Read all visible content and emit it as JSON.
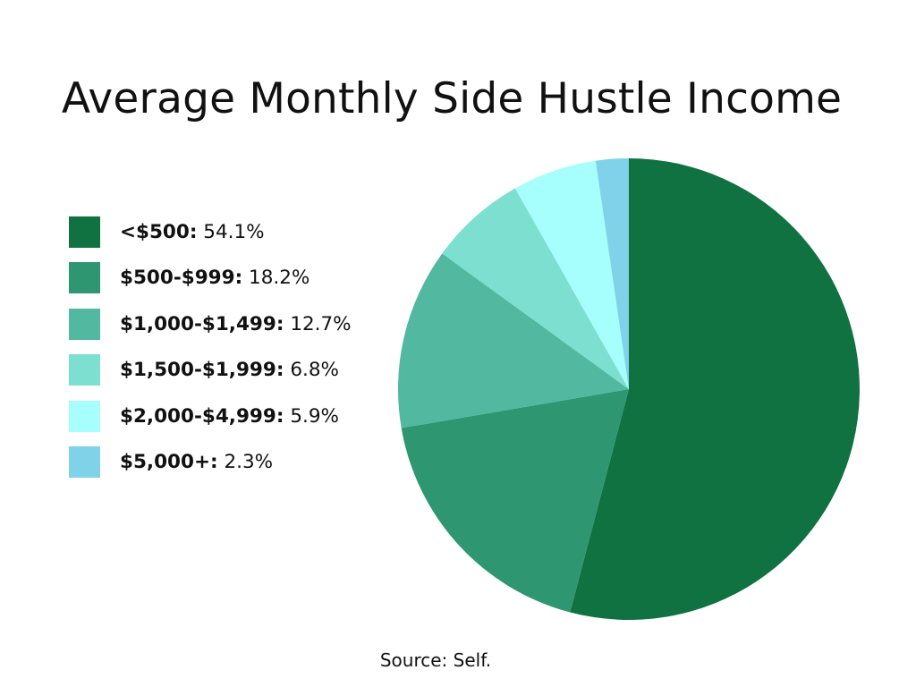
{
  "chart_data": {
    "type": "pie",
    "title": "Average Monthly Side Hustle Income",
    "source": "Source: Self.",
    "slices": [
      {
        "label": "<$500:",
        "value": 54.1,
        "display": "54.1%",
        "color": "#107141"
      },
      {
        "label": "$500-$999:",
        "value": 18.2,
        "display": "18.2%",
        "color": "#2e9670"
      },
      {
        "label": "$1,000-$1,499:",
        "value": 12.7,
        "display": "12.7%",
        "color": "#52b8a0"
      },
      {
        "label": "$1,500-$1,999:",
        "value": 6.8,
        "display": "6.8%",
        "color": "#7ddfd0"
      },
      {
        "label": "$2,000-$4,999:",
        "value": 5.9,
        "display": "5.9%",
        "color": "#a6fffd"
      },
      {
        "label": "$5,000+:",
        "value": 2.3,
        "display": "2.3%",
        "color": "#7fd2e8"
      }
    ],
    "legend_position": "left",
    "start_angle": "12 o'clock",
    "direction": "clockwise"
  }
}
